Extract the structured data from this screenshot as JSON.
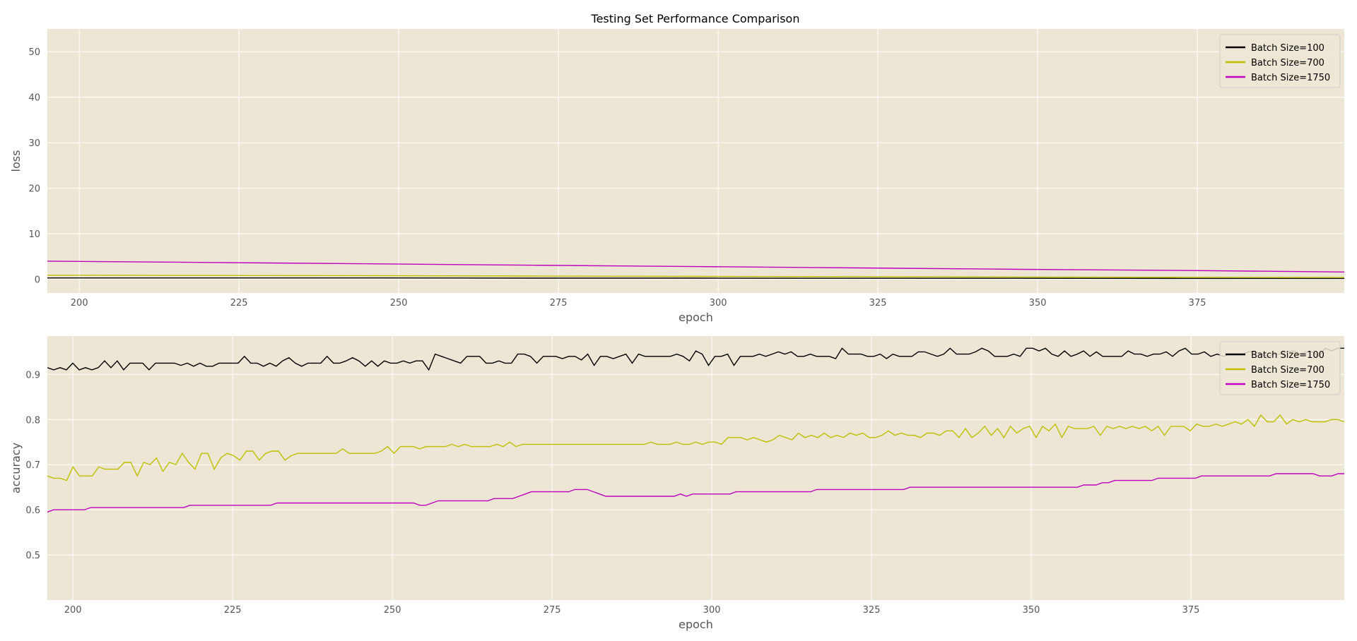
{
  "chart_data": {
    "title": "Testing Set Performance Comparison",
    "panels": [
      {
        "type": "line",
        "xlabel": "epoch",
        "ylabel": "loss",
        "xlim": [
          195,
          398
        ],
        "ylim": [
          -3,
          55
        ],
        "xticks": [
          200,
          225,
          250,
          275,
          300,
          325,
          350,
          375
        ],
        "yticks": [
          0,
          10,
          20,
          30,
          40,
          50
        ],
        "grid": true,
        "legend_position": "top-right",
        "x_start": 195,
        "x_end": 398,
        "series": [
          {
            "name": "Batch Size=100",
            "color": "#000000",
            "values": [
              0.3,
              0.3,
              0.3,
              0.25,
              0.25,
              0.22,
              0.22,
              0.2,
              0.2
            ]
          },
          {
            "name": "Batch Size=700",
            "color": "#bfbf00",
            "values": [
              0.9,
              0.85,
              0.8,
              0.72,
              0.65,
              0.58,
              0.5,
              0.45,
              0.4
            ]
          },
          {
            "name": "Batch Size=1750",
            "color": "#bf00bf",
            "values": [
              4.0,
              3.7,
              3.4,
              3.1,
              2.8,
              2.5,
              2.2,
              1.95,
              1.6
            ]
          }
        ]
      },
      {
        "type": "line",
        "xlabel": "epoch",
        "ylabel": "accuracy",
        "xlim": [
          196,
          399
        ],
        "ylim": [
          0.4,
          0.985
        ],
        "xticks": [
          200,
          225,
          250,
          275,
          300,
          325,
          350,
          375
        ],
        "yticks": [
          0.5,
          0.6,
          0.7,
          0.8,
          0.9
        ],
        "grid": true,
        "legend_position": "top-right",
        "x_start": 196,
        "x_end": 399,
        "series": [
          {
            "name": "Batch Size=100",
            "color": "#000000",
            "values": [
              0.915,
              0.91,
              0.915,
              0.91,
              0.925,
              0.91,
              0.915,
              0.91,
              0.915,
              0.93,
              0.915,
              0.93,
              0.91,
              0.925,
              0.925,
              0.925,
              0.91,
              0.925,
              0.925,
              0.925,
              0.925,
              0.92,
              0.925,
              0.918,
              0.925,
              0.918,
              0.918,
              0.925,
              0.925,
              0.925,
              0.925,
              0.94,
              0.925,
              0.925,
              0.918,
              0.925,
              0.918,
              0.93,
              0.937,
              0.925,
              0.918,
              0.925,
              0.925,
              0.925,
              0.94,
              0.925,
              0.925,
              0.93,
              0.937,
              0.93,
              0.918,
              0.93,
              0.918,
              0.93,
              0.925,
              0.925,
              0.93,
              0.925,
              0.93,
              0.93,
              0.91,
              0.945,
              0.94,
              0.935,
              0.93,
              0.925,
              0.94,
              0.94,
              0.94,
              0.925,
              0.925,
              0.93,
              0.925,
              0.925,
              0.945,
              0.945,
              0.94,
              0.925,
              0.94,
              0.94,
              0.94,
              0.935,
              0.94,
              0.94,
              0.932,
              0.945,
              0.92,
              0.94,
              0.94,
              0.935,
              0.94,
              0.945,
              0.925,
              0.945,
              0.94,
              0.94,
              0.94,
              0.94,
              0.94,
              0.945,
              0.94,
              0.93,
              0.952,
              0.945,
              0.92,
              0.94,
              0.94,
              0.945,
              0.92,
              0.94,
              0.94,
              0.94,
              0.945,
              0.94,
              0.945,
              0.95,
              0.945,
              0.95,
              0.94,
              0.94,
              0.945,
              0.94,
              0.94,
              0.94,
              0.935,
              0.958,
              0.945,
              0.945,
              0.945,
              0.94,
              0.94,
              0.945,
              0.935,
              0.945,
              0.94,
              0.94,
              0.94,
              0.95,
              0.95,
              0.945,
              0.94,
              0.945,
              0.958,
              0.945,
              0.945,
              0.945,
              0.95,
              0.958,
              0.952,
              0.94,
              0.94,
              0.94,
              0.945,
              0.94,
              0.958,
              0.958,
              0.952,
              0.958,
              0.945,
              0.94,
              0.952,
              0.94,
              0.945,
              0.952,
              0.94,
              0.95,
              0.94,
              0.94,
              0.94,
              0.94,
              0.952,
              0.945,
              0.945,
              0.94,
              0.945,
              0.945,
              0.95,
              0.94,
              0.952,
              0.958,
              0.945,
              0.945,
              0.95,
              0.94,
              0.945,
              0.94,
              0.945,
              0.945,
              0.945,
              0.95,
              0.95,
              0.945,
              0.94,
              0.945,
              0.945,
              0.95,
              0.952,
              0.945,
              0.95,
              0.95,
              0.94,
              0.958,
              0.952,
              0.958,
              0.958
            ]
          },
          {
            "name": "Batch Size=700",
            "color": "#bfbf00",
            "values": [
              0.675,
              0.67,
              0.67,
              0.665,
              0.695,
              0.675,
              0.675,
              0.675,
              0.695,
              0.69,
              0.69,
              0.69,
              0.705,
              0.705,
              0.675,
              0.705,
              0.7,
              0.715,
              0.685,
              0.705,
              0.7,
              0.725,
              0.705,
              0.69,
              0.725,
              0.725,
              0.69,
              0.715,
              0.725,
              0.72,
              0.71,
              0.73,
              0.73,
              0.71,
              0.725,
              0.73,
              0.73,
              0.71,
              0.72,
              0.725,
              0.725,
              0.725,
              0.725,
              0.725,
              0.725,
              0.725,
              0.735,
              0.725,
              0.725,
              0.725,
              0.725,
              0.725,
              0.73,
              0.74,
              0.725,
              0.74,
              0.74,
              0.74,
              0.735,
              0.74,
              0.74,
              0.74,
              0.74,
              0.745,
              0.74,
              0.745,
              0.74,
              0.74,
              0.74,
              0.74,
              0.745,
              0.74,
              0.75,
              0.74,
              0.745,
              0.745,
              0.745,
              0.745,
              0.745,
              0.745,
              0.745,
              0.745,
              0.745,
              0.745,
              0.745,
              0.745,
              0.745,
              0.745,
              0.745,
              0.745,
              0.745,
              0.745,
              0.745,
              0.745,
              0.75,
              0.745,
              0.745,
              0.745,
              0.75,
              0.745,
              0.745,
              0.75,
              0.745,
              0.75,
              0.75,
              0.745,
              0.76,
              0.76,
              0.76,
              0.755,
              0.76,
              0.755,
              0.75,
              0.755,
              0.765,
              0.76,
              0.755,
              0.77,
              0.76,
              0.765,
              0.76,
              0.77,
              0.76,
              0.765,
              0.76,
              0.77,
              0.765,
              0.77,
              0.76,
              0.76,
              0.765,
              0.775,
              0.765,
              0.77,
              0.765,
              0.765,
              0.76,
              0.77,
              0.77,
              0.765,
              0.775,
              0.775,
              0.76,
              0.78,
              0.76,
              0.77,
              0.785,
              0.765,
              0.78,
              0.76,
              0.785,
              0.77,
              0.78,
              0.785,
              0.76,
              0.785,
              0.775,
              0.79,
              0.76,
              0.785,
              0.78,
              0.78,
              0.78,
              0.785,
              0.765,
              0.785,
              0.78,
              0.785,
              0.78,
              0.785,
              0.78,
              0.785,
              0.775,
              0.785,
              0.765,
              0.785,
              0.785,
              0.785,
              0.775,
              0.79,
              0.785,
              0.785,
              0.79,
              0.785,
              0.79,
              0.795,
              0.79,
              0.8,
              0.785,
              0.81,
              0.795,
              0.795,
              0.81,
              0.79,
              0.8,
              0.795,
              0.8,
              0.795,
              0.795,
              0.795,
              0.8,
              0.8,
              0.795
            ]
          },
          {
            "name": "Batch Size=1750",
            "color": "#bf00bf",
            "values": [
              0.595,
              0.6,
              0.6,
              0.6,
              0.6,
              0.6,
              0.6,
              0.605,
              0.605,
              0.605,
              0.605,
              0.605,
              0.605,
              0.605,
              0.605,
              0.605,
              0.605,
              0.605,
              0.605,
              0.605,
              0.605,
              0.605,
              0.605,
              0.61,
              0.61,
              0.61,
              0.61,
              0.61,
              0.61,
              0.61,
              0.61,
              0.61,
              0.61,
              0.61,
              0.61,
              0.61,
              0.61,
              0.615,
              0.615,
              0.615,
              0.615,
              0.615,
              0.615,
              0.615,
              0.615,
              0.615,
              0.615,
              0.615,
              0.615,
              0.615,
              0.615,
              0.615,
              0.615,
              0.615,
              0.615,
              0.615,
              0.615,
              0.615,
              0.615,
              0.615,
              0.61,
              0.61,
              0.615,
              0.62,
              0.62,
              0.62,
              0.62,
              0.62,
              0.62,
              0.62,
              0.62,
              0.62,
              0.625,
              0.625,
              0.625,
              0.625,
              0.63,
              0.635,
              0.64,
              0.64,
              0.64,
              0.64,
              0.64,
              0.64,
              0.64,
              0.645,
              0.645,
              0.645,
              0.64,
              0.635,
              0.63,
              0.63,
              0.63,
              0.63,
              0.63,
              0.63,
              0.63,
              0.63,
              0.63,
              0.63,
              0.63,
              0.63,
              0.635,
              0.63,
              0.635,
              0.635,
              0.635,
              0.635,
              0.635,
              0.635,
              0.635,
              0.64,
              0.64,
              0.64,
              0.64,
              0.64,
              0.64,
              0.64,
              0.64,
              0.64,
              0.64,
              0.64,
              0.64,
              0.64,
              0.645,
              0.645,
              0.645,
              0.645,
              0.645,
              0.645,
              0.645,
              0.645,
              0.645,
              0.645,
              0.645,
              0.645,
              0.645,
              0.645,
              0.645,
              0.65,
              0.65,
              0.65,
              0.65,
              0.65,
              0.65,
              0.65,
              0.65,
              0.65,
              0.65,
              0.65,
              0.65,
              0.65,
              0.65,
              0.65,
              0.65,
              0.65,
              0.65,
              0.65,
              0.65,
              0.65,
              0.65,
              0.65,
              0.65,
              0.65,
              0.65,
              0.65,
              0.65,
              0.655,
              0.655,
              0.655,
              0.66,
              0.66,
              0.665,
              0.665,
              0.665,
              0.665,
              0.665,
              0.665,
              0.665,
              0.67,
              0.67,
              0.67,
              0.67,
              0.67,
              0.67,
              0.67,
              0.675,
              0.675,
              0.675,
              0.675,
              0.675,
              0.675,
              0.675,
              0.675,
              0.675,
              0.675,
              0.675,
              0.675,
              0.68,
              0.68,
              0.68,
              0.68,
              0.68,
              0.68,
              0.68,
              0.675,
              0.675,
              0.675,
              0.68,
              0.68
            ]
          }
        ]
      }
    ]
  },
  "colors": {
    "plot_background": "#ede6d5",
    "grid": "#ffffff",
    "tick_text": "#555555"
  }
}
